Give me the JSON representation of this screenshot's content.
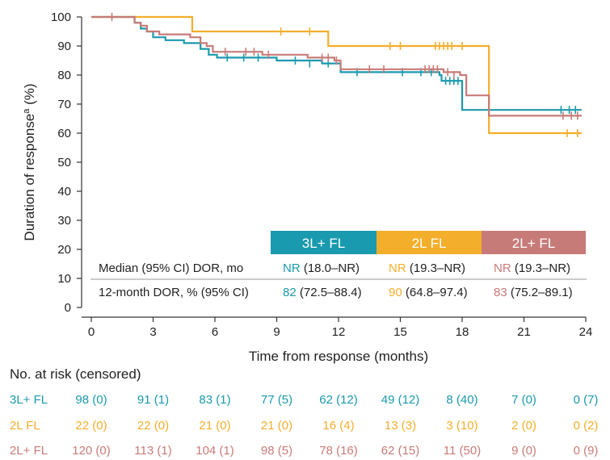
{
  "chart_data": {
    "type": "line",
    "subtype": "kaplan-meier",
    "ylabel_prefix": "Duration of response",
    "ylabel_sup": "a",
    "ylabel_suffix": " (%)",
    "xlabel": "Time from response (months)",
    "xlim": [
      0,
      24
    ],
    "ylim": [
      0,
      100
    ],
    "xticks": [
      0,
      3,
      6,
      9,
      12,
      15,
      18,
      21,
      24
    ],
    "yticks": [
      0,
      10,
      20,
      30,
      40,
      50,
      60,
      70,
      80,
      90,
      100
    ],
    "grid": false,
    "series": [
      {
        "name": "3L+ FL",
        "color": "#1a9aae",
        "steps": [
          [
            0,
            100
          ],
          [
            1.9,
            100
          ],
          [
            2.1,
            98
          ],
          [
            2.4,
            96
          ],
          [
            2.7,
            95
          ],
          [
            3.0,
            93
          ],
          [
            3.6,
            92
          ],
          [
            4.5,
            91
          ],
          [
            5.3,
            89
          ],
          [
            5.7,
            87
          ],
          [
            6.1,
            86
          ],
          [
            8.3,
            86
          ],
          [
            9.0,
            85
          ],
          [
            11.2,
            84
          ],
          [
            12.1,
            81
          ],
          [
            16.7,
            81
          ],
          [
            16.9,
            80
          ],
          [
            17.0,
            78
          ],
          [
            18.0,
            68
          ],
          [
            23.8,
            68
          ]
        ],
        "censored": [
          [
            6.6,
            86
          ],
          [
            7.4,
            86
          ],
          [
            8.1,
            86
          ],
          [
            9.9,
            85
          ],
          [
            10.6,
            84
          ],
          [
            11.5,
            84
          ],
          [
            12.9,
            81
          ],
          [
            15.1,
            81
          ],
          [
            16.0,
            81
          ],
          [
            16.5,
            81
          ],
          [
            17.2,
            78
          ],
          [
            17.4,
            78
          ],
          [
            17.6,
            78
          ],
          [
            17.8,
            78
          ],
          [
            22.8,
            68
          ],
          [
            23.2,
            68
          ],
          [
            23.5,
            68
          ]
        ]
      },
      {
        "name": "2L FL",
        "color": "#f3ae2c",
        "steps": [
          [
            0,
            100
          ],
          [
            4.8,
            100
          ],
          [
            4.9,
            95
          ],
          [
            11.4,
            95
          ],
          [
            11.5,
            90
          ],
          [
            19.2,
            90
          ],
          [
            19.3,
            60
          ],
          [
            23.8,
            60
          ]
        ],
        "censored": [
          [
            9.2,
            95
          ],
          [
            10.6,
            95
          ],
          [
            14.5,
            90
          ],
          [
            15.0,
            90
          ],
          [
            16.7,
            90
          ],
          [
            16.9,
            90
          ],
          [
            17.1,
            90
          ],
          [
            17.3,
            90
          ],
          [
            17.5,
            90
          ],
          [
            18.0,
            90
          ],
          [
            23.1,
            60
          ],
          [
            23.6,
            60
          ]
        ]
      },
      {
        "name": "2L+ FL",
        "color": "#c77b78",
        "steps": [
          [
            0,
            100
          ],
          [
            1.9,
            100
          ],
          [
            2.1,
            98
          ],
          [
            2.4,
            97
          ],
          [
            2.7,
            95
          ],
          [
            3.3,
            94
          ],
          [
            4.8,
            93
          ],
          [
            5.3,
            91
          ],
          [
            5.6,
            90
          ],
          [
            5.9,
            88
          ],
          [
            8.0,
            88
          ],
          [
            8.3,
            87
          ],
          [
            10.3,
            87
          ],
          [
            10.5,
            86
          ],
          [
            11.8,
            85
          ],
          [
            12.1,
            82
          ],
          [
            16.9,
            82
          ],
          [
            17.1,
            81
          ],
          [
            17.9,
            80
          ],
          [
            18.2,
            73
          ],
          [
            19.3,
            66
          ],
          [
            23.8,
            66
          ]
        ],
        "censored": [
          [
            1.0,
            100
          ],
          [
            6.5,
            88
          ],
          [
            7.5,
            88
          ],
          [
            7.9,
            88
          ],
          [
            8.6,
            87
          ],
          [
            11.2,
            86
          ],
          [
            11.5,
            86
          ],
          [
            11.9,
            85
          ],
          [
            13.5,
            82
          ],
          [
            14.2,
            82
          ],
          [
            16.2,
            82
          ],
          [
            16.4,
            82
          ],
          [
            16.6,
            82
          ],
          [
            16.8,
            82
          ],
          [
            17.3,
            81
          ],
          [
            17.6,
            80
          ],
          [
            22.9,
            66
          ],
          [
            23.3,
            66
          ],
          [
            23.6,
            66
          ]
        ]
      }
    ],
    "summary_table": {
      "header": [
        "3L+ FL",
        "2L FL",
        "2L+ FL"
      ],
      "header_colors": [
        "#1a9aae",
        "#f3ae2c",
        "#c77b78"
      ],
      "rows": [
        {
          "label": "Median (95% CI) DOR, mo",
          "cells": [
            {
              "value": "NR",
              "ci": "(18.0–NR)"
            },
            {
              "value": "NR",
              "ci": "(19.3–NR)"
            },
            {
              "value": "NR",
              "ci": "(19.3–NR)"
            }
          ]
        },
        {
          "label": "12-month DOR, % (95% CI)",
          "cells": [
            {
              "value": "82",
              "ci": "(72.5–88.4)"
            },
            {
              "value": "90",
              "ci": "(64.8–97.4)"
            },
            {
              "value": "83",
              "ci": "(75.2–89.1)"
            }
          ]
        }
      ]
    },
    "risk_table": {
      "title": "No. at risk (censored)",
      "rows": [
        {
          "label": "3L+ FL",
          "color": "#1a9aae",
          "values": [
            "98 (0)",
            "91 (1)",
            "83 (1)",
            "77 (5)",
            "62 (12)",
            "49 (12)",
            "8 (40)",
            "7 (0)",
            "0 (7)"
          ]
        },
        {
          "label": "2L FL",
          "color": "#f3ae2c",
          "values": [
            "22 (0)",
            "22 (0)",
            "21 (0)",
            "21 (0)",
            "16 (4)",
            "13 (3)",
            "3 (10)",
            "2 (0)",
            "0 (2)"
          ]
        },
        {
          "label": "2L+ FL",
          "color": "#c77b78",
          "values": [
            "120 (0)",
            "113 (1)",
            "104 (1)",
            "98 (5)",
            "78 (16)",
            "62 (15)",
            "11 (50)",
            "9 (0)",
            "0 (9)"
          ]
        }
      ]
    }
  }
}
